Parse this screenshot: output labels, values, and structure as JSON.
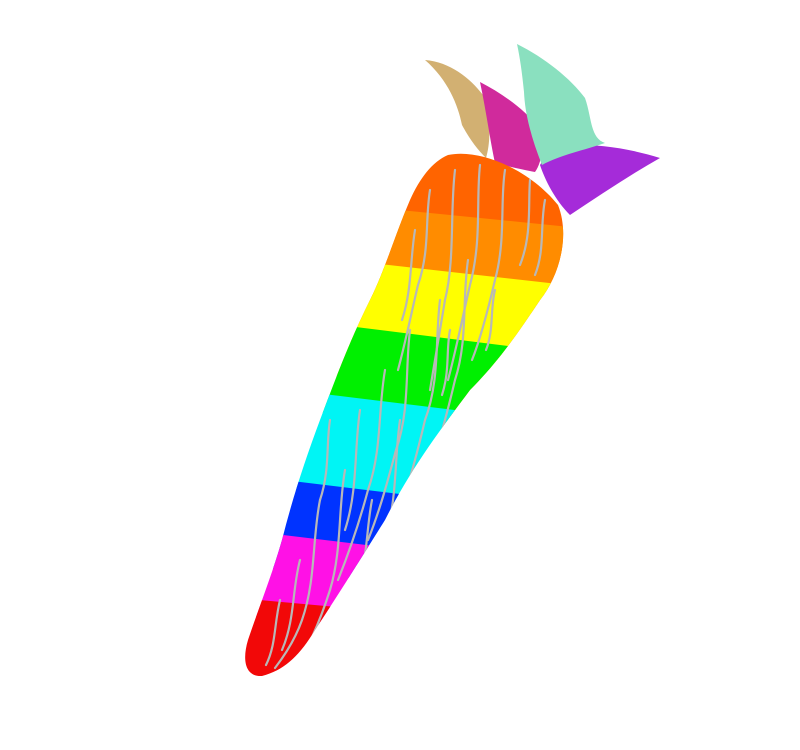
{
  "illustration": {
    "subject": "rainbow-carrot",
    "background_color": "#ffffff",
    "leaves": [
      {
        "name": "leaf-tan",
        "color": "#d2b072"
      },
      {
        "name": "leaf-magenta",
        "color": "#d02a9c"
      },
      {
        "name": "leaf-mint",
        "color": "#8ae0bf"
      },
      {
        "name": "leaf-purple",
        "color": "#a52bd9"
      }
    ],
    "stripes": [
      {
        "name": "stripe-orange-red",
        "color": "#ff6400"
      },
      {
        "name": "stripe-orange",
        "color": "#ff8c00"
      },
      {
        "name": "stripe-yellow",
        "color": "#ffff00"
      },
      {
        "name": "stripe-green",
        "color": "#00f000"
      },
      {
        "name": "stripe-cyan",
        "color": "#00f5f5"
      },
      {
        "name": "stripe-blue",
        "color": "#0033ff"
      },
      {
        "name": "stripe-pink",
        "color": "#ff11e6"
      },
      {
        "name": "stripe-red",
        "color": "#f20808"
      }
    ],
    "texture_line_color": "#b8b8b8"
  }
}
